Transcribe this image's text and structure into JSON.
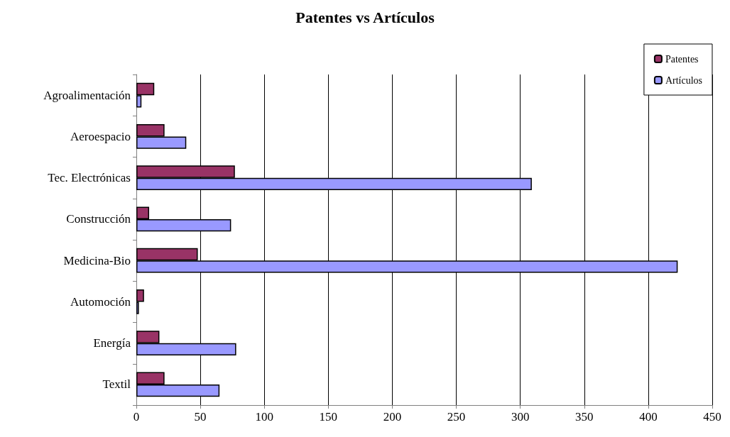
{
  "chart_data": {
    "type": "bar",
    "orientation": "horizontal",
    "title": "Patentes vs Artículos",
    "categories": [
      "Agroalimentación",
      "Aeroespacio",
      "Tec. Electrónicas",
      "Construcción",
      "Medicina-Bio",
      "Automoción",
      "Energía",
      "Textil"
    ],
    "series": [
      {
        "name": "Patentes",
        "color": "#993366",
        "values": [
          14,
          22,
          77,
          10,
          48,
          6,
          18,
          22
        ]
      },
      {
        "name": "Artículos",
        "color": "#9999ff",
        "values": [
          4,
          39,
          309,
          74,
          423,
          2,
          78,
          65
        ]
      }
    ],
    "xlim": [
      0,
      450
    ],
    "xticks": [
      0,
      50,
      100,
      150,
      200,
      250,
      300,
      350,
      400,
      450
    ],
    "grid": "x",
    "legend": "top right"
  }
}
